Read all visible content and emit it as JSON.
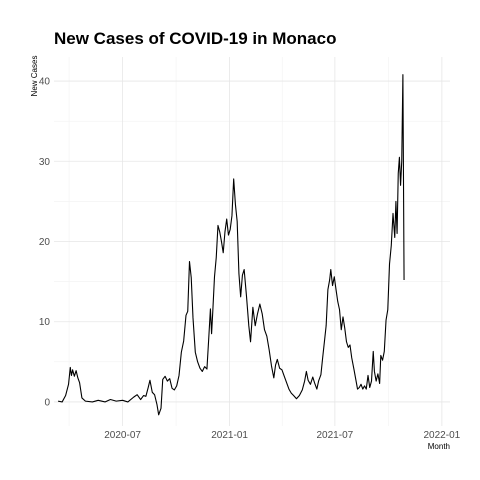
{
  "chart_data": {
    "type": "line",
    "title": "New Cases of COVID-19 in Monaco",
    "xlabel": "Month",
    "ylabel": "New Cases",
    "grid": true,
    "legend": "none",
    "xlim": [
      "2020-03-05",
      "2022-01-15"
    ],
    "ylim": [
      -3,
      43
    ],
    "x_ticks": [
      {
        "date": "2020-07-01",
        "label": "2020-07"
      },
      {
        "date": "2021-01-01",
        "label": "2021-01"
      },
      {
        "date": "2021-07-01",
        "label": "2021-07"
      },
      {
        "date": "2022-01-01",
        "label": "2022-01"
      }
    ],
    "y_ticks": [
      0,
      10,
      20,
      30,
      40
    ],
    "series": [
      {
        "color": "#000000",
        "points": [
          [
            "2020-03-12",
            0.1
          ],
          [
            "2020-03-19",
            0.0
          ],
          [
            "2020-03-25",
            0.8
          ],
          [
            "2020-03-30",
            2.2
          ],
          [
            "2020-04-02",
            4.3
          ],
          [
            "2020-04-04",
            3.3
          ],
          [
            "2020-04-06",
            4.0
          ],
          [
            "2020-04-09",
            3.2
          ],
          [
            "2020-04-12",
            3.9
          ],
          [
            "2020-04-15",
            3.0
          ],
          [
            "2020-04-18",
            2.4
          ],
          [
            "2020-04-22",
            0.5
          ],
          [
            "2020-04-28",
            0.1
          ],
          [
            "2020-05-10",
            0.0
          ],
          [
            "2020-05-20",
            0.2
          ],
          [
            "2020-06-01",
            0.0
          ],
          [
            "2020-06-10",
            0.3
          ],
          [
            "2020-06-20",
            0.1
          ],
          [
            "2020-07-01",
            0.2
          ],
          [
            "2020-07-10",
            0.0
          ],
          [
            "2020-07-20",
            0.6
          ],
          [
            "2020-07-26",
            0.9
          ],
          [
            "2020-08-01",
            0.3
          ],
          [
            "2020-08-06",
            0.8
          ],
          [
            "2020-08-10",
            0.7
          ],
          [
            "2020-08-14",
            1.8
          ],
          [
            "2020-08-17",
            2.7
          ],
          [
            "2020-08-21",
            1.2
          ],
          [
            "2020-08-25",
            0.9
          ],
          [
            "2020-08-29",
            -0.3
          ],
          [
            "2020-09-01",
            -1.6
          ],
          [
            "2020-09-05",
            -0.8
          ],
          [
            "2020-09-08",
            2.8
          ],
          [
            "2020-09-12",
            3.2
          ],
          [
            "2020-09-16",
            2.6
          ],
          [
            "2020-09-20",
            2.9
          ],
          [
            "2020-09-24",
            1.7
          ],
          [
            "2020-09-28",
            1.5
          ],
          [
            "2020-10-02",
            2.0
          ],
          [
            "2020-10-06",
            3.3
          ],
          [
            "2020-10-10",
            6.2
          ],
          [
            "2020-10-14",
            7.6
          ],
          [
            "2020-10-18",
            10.8
          ],
          [
            "2020-10-21",
            11.3
          ],
          [
            "2020-10-24",
            17.5
          ],
          [
            "2020-10-27",
            15.5
          ],
          [
            "2020-10-30",
            10.5
          ],
          [
            "2020-11-03",
            6.2
          ],
          [
            "2020-11-07",
            5.0
          ],
          [
            "2020-11-11",
            4.2
          ],
          [
            "2020-11-15",
            3.8
          ],
          [
            "2020-11-19",
            4.4
          ],
          [
            "2020-11-23",
            4.1
          ],
          [
            "2020-11-26",
            7.8
          ],
          [
            "2020-11-29",
            11.6
          ],
          [
            "2020-12-01",
            8.5
          ],
          [
            "2020-12-03",
            11.2
          ],
          [
            "2020-12-06",
            15.6
          ],
          [
            "2020-12-09",
            18.0
          ],
          [
            "2020-12-12",
            22.0
          ],
          [
            "2020-12-15",
            21.2
          ],
          [
            "2020-12-18",
            20.0
          ],
          [
            "2020-12-21",
            18.6
          ],
          [
            "2020-12-24",
            21.2
          ],
          [
            "2020-12-27",
            22.8
          ],
          [
            "2020-12-30",
            20.8
          ],
          [
            "2021-01-02",
            21.5
          ],
          [
            "2021-01-05",
            23.2
          ],
          [
            "2021-01-08",
            27.8
          ],
          [
            "2021-01-11",
            24.6
          ],
          [
            "2021-01-14",
            22.5
          ],
          [
            "2021-01-17",
            16.0
          ],
          [
            "2021-01-20",
            13.1
          ],
          [
            "2021-01-23",
            15.8
          ],
          [
            "2021-01-26",
            16.5
          ],
          [
            "2021-01-30",
            13.2
          ],
          [
            "2021-02-03",
            9.5
          ],
          [
            "2021-02-06",
            7.5
          ],
          [
            "2021-02-10",
            11.8
          ],
          [
            "2021-02-14",
            9.5
          ],
          [
            "2021-02-18",
            11.0
          ],
          [
            "2021-02-22",
            12.2
          ],
          [
            "2021-02-26",
            11.0
          ],
          [
            "2021-03-02",
            9.0
          ],
          [
            "2021-03-06",
            8.2
          ],
          [
            "2021-03-10",
            6.5
          ],
          [
            "2021-03-14",
            4.5
          ],
          [
            "2021-03-18",
            3.0
          ],
          [
            "2021-03-21",
            4.6
          ],
          [
            "2021-03-24",
            5.3
          ],
          [
            "2021-03-28",
            4.2
          ],
          [
            "2021-04-01",
            4.0
          ],
          [
            "2021-04-05",
            3.2
          ],
          [
            "2021-04-09",
            2.4
          ],
          [
            "2021-04-13",
            1.6
          ],
          [
            "2021-04-17",
            1.1
          ],
          [
            "2021-04-21",
            0.8
          ],
          [
            "2021-04-26",
            0.4
          ],
          [
            "2021-05-01",
            0.8
          ],
          [
            "2021-05-06",
            1.5
          ],
          [
            "2021-05-10",
            2.6
          ],
          [
            "2021-05-13",
            3.8
          ],
          [
            "2021-05-16",
            2.7
          ],
          [
            "2021-05-20",
            2.2
          ],
          [
            "2021-05-24",
            3.1
          ],
          [
            "2021-05-27",
            2.4
          ],
          [
            "2021-05-31",
            1.6
          ],
          [
            "2021-06-03",
            2.6
          ],
          [
            "2021-06-07",
            3.4
          ],
          [
            "2021-06-10",
            5.5
          ],
          [
            "2021-06-13",
            7.5
          ],
          [
            "2021-06-16",
            9.5
          ],
          [
            "2021-06-19",
            14.0
          ],
          [
            "2021-06-22",
            15.2
          ],
          [
            "2021-06-24",
            16.5
          ],
          [
            "2021-06-27",
            14.5
          ],
          [
            "2021-06-30",
            15.6
          ],
          [
            "2021-07-03",
            14.0
          ],
          [
            "2021-07-06",
            12.5
          ],
          [
            "2021-07-09",
            11.5
          ],
          [
            "2021-07-12",
            9.0
          ],
          [
            "2021-07-15",
            10.6
          ],
          [
            "2021-07-18",
            9.2
          ],
          [
            "2021-07-21",
            7.5
          ],
          [
            "2021-07-24",
            6.8
          ],
          [
            "2021-07-27",
            7.1
          ],
          [
            "2021-07-30",
            5.5
          ],
          [
            "2021-08-03",
            4.0
          ],
          [
            "2021-08-06",
            2.8
          ],
          [
            "2021-08-09",
            1.6
          ],
          [
            "2021-08-12",
            1.8
          ],
          [
            "2021-08-15",
            2.2
          ],
          [
            "2021-08-18",
            1.6
          ],
          [
            "2021-08-21",
            2.0
          ],
          [
            "2021-08-24",
            1.6
          ],
          [
            "2021-08-27",
            3.3
          ],
          [
            "2021-08-30",
            1.8
          ],
          [
            "2021-09-02",
            2.6
          ],
          [
            "2021-09-05",
            6.3
          ],
          [
            "2021-09-07",
            3.8
          ],
          [
            "2021-09-10",
            2.6
          ],
          [
            "2021-09-13",
            3.5
          ],
          [
            "2021-09-16",
            2.3
          ],
          [
            "2021-09-18",
            5.8
          ],
          [
            "2021-09-21",
            5.2
          ],
          [
            "2021-09-24",
            6.3
          ],
          [
            "2021-09-27",
            10.2
          ],
          [
            "2021-09-30",
            11.5
          ],
          [
            "2021-10-03",
            17.2
          ],
          [
            "2021-10-06",
            19.5
          ],
          [
            "2021-10-09",
            23.5
          ],
          [
            "2021-10-12",
            20.5
          ],
          [
            "2021-10-14",
            25.0
          ],
          [
            "2021-10-16",
            21.0
          ],
          [
            "2021-10-18",
            28.5
          ],
          [
            "2021-10-20",
            30.5
          ],
          [
            "2021-10-22",
            27.0
          ],
          [
            "2021-10-24",
            30.0
          ],
          [
            "2021-10-26",
            40.8
          ],
          [
            "2021-10-28",
            15.2
          ]
        ]
      }
    ]
  }
}
